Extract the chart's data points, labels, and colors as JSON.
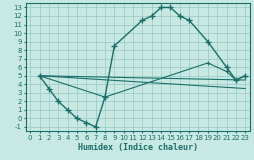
{
  "xlabel": "Humidex (Indice chaleur)",
  "bg_color": "#c8e8e4",
  "grid_color": "#99c8c4",
  "line_color": "#1a7068",
  "xlim": [
    -0.5,
    23.5
  ],
  "ylim": [
    -1.5,
    13.5
  ],
  "xticks": [
    0,
    1,
    2,
    3,
    4,
    5,
    6,
    7,
    8,
    9,
    10,
    11,
    12,
    13,
    14,
    15,
    16,
    17,
    18,
    19,
    20,
    21,
    22,
    23
  ],
  "yticks": [
    -1,
    0,
    1,
    2,
    3,
    4,
    5,
    6,
    7,
    8,
    9,
    10,
    11,
    12,
    13
  ],
  "main_x": [
    1,
    2,
    3,
    4,
    5,
    6,
    7,
    8,
    9,
    12,
    13,
    14,
    15,
    16,
    17,
    19,
    21,
    22,
    23
  ],
  "main_y": [
    5,
    3.5,
    2,
    1,
    0,
    -0.5,
    -1,
    2.5,
    8.5,
    11.5,
    12,
    13,
    13,
    12,
    11.5,
    9,
    6,
    4.5,
    5
  ],
  "line2_x": [
    1,
    8,
    19,
    21,
    22,
    23
  ],
  "line2_y": [
    5,
    2.5,
    6.5,
    5.5,
    4.5,
    5
  ],
  "line3_x": [
    1,
    23
  ],
  "line3_y": [
    5,
    3.5
  ],
  "line4_x": [
    1,
    23
  ],
  "line4_y": [
    5,
    4.5
  ]
}
